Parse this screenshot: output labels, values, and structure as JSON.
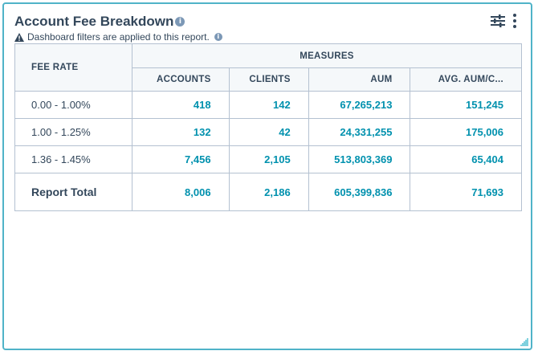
{
  "report": {
    "title": "Account Fee Breakdown",
    "notice": "Dashboard filters are applied to this report."
  },
  "icons": {
    "info": "info-icon",
    "warning": "warning-icon",
    "filter": "filter-sliders-icon",
    "more": "more-vertical-icon",
    "resize": "resize-handle-icon"
  },
  "colors": {
    "accent": "#0091ae",
    "border": "#4fb3c8",
    "header_bg": "#f5f8fa"
  },
  "table": {
    "row_header": "FEE RATE",
    "group_header": "MEASURES",
    "columns": [
      "ACCOUNTS",
      "CLIENTS",
      "AUM",
      "AVG. AUM/C..."
    ],
    "rows": [
      {
        "label": "0.00 - 1.00%",
        "values": [
          "418",
          "142",
          "67,265,213",
          "151,245"
        ]
      },
      {
        "label": "1.00 - 1.25%",
        "values": [
          "132",
          "42",
          "24,331,255",
          "175,006"
        ]
      },
      {
        "label": "1.36 - 1.45%",
        "values": [
          "7,456",
          "2,105",
          "513,803,369",
          "65,404"
        ]
      }
    ],
    "total": {
      "label": "Report Total",
      "values": [
        "8,006",
        "2,186",
        "605,399,836",
        "71,693"
      ]
    }
  }
}
